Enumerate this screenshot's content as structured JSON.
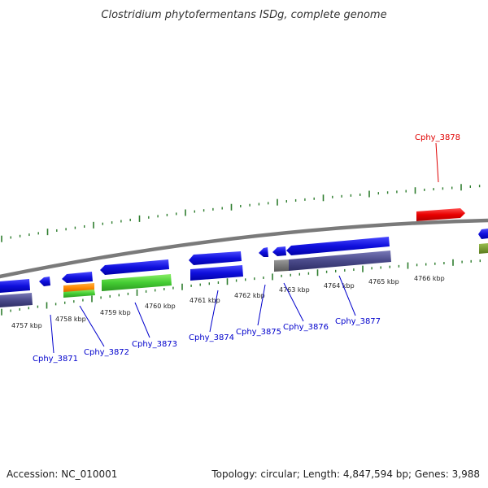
{
  "title": "Clostridium phytofermentans ISDg, complete genome",
  "footer": {
    "accession": "Accession: NC_010001",
    "stats": "Topology: circular; Length: 4,847,594 bp; Genes: 3,988"
  },
  "kbp_ticks": [
    {
      "label": "4757 kbp"
    },
    {
      "label": "4758 kbp"
    },
    {
      "label": "4759 kbp"
    },
    {
      "label": "4760 kbp"
    },
    {
      "label": "4761 kbp"
    },
    {
      "label": "4762 kbp"
    },
    {
      "label": "4763 kbp"
    },
    {
      "label": "4764 kbp"
    },
    {
      "label": "4765 kbp"
    },
    {
      "label": "4766 kbp"
    }
  ],
  "genes": [
    {
      "label": "Cphy_3871"
    },
    {
      "label": "Cphy_3872"
    },
    {
      "label": "Cphy_3873"
    },
    {
      "label": "Cphy_3874"
    },
    {
      "label": "Cphy_3875"
    },
    {
      "label": "Cphy_3876"
    },
    {
      "label": "Cphy_3877"
    },
    {
      "label": "Cphy_3878",
      "strand": "forward",
      "color": "#e00000"
    }
  ],
  "colors": {
    "backbone": "#7a7a7a",
    "gene_reverse": "#1010dd",
    "gene_forward": "#e00000",
    "cog_green": "#44cc33",
    "cog_purple": "#4a4a8a",
    "cog_orange": "#ff8800",
    "cog_olive": "#6b8e23",
    "tick_green": "#2e7d2e",
    "label_blue": "#0000cc"
  }
}
